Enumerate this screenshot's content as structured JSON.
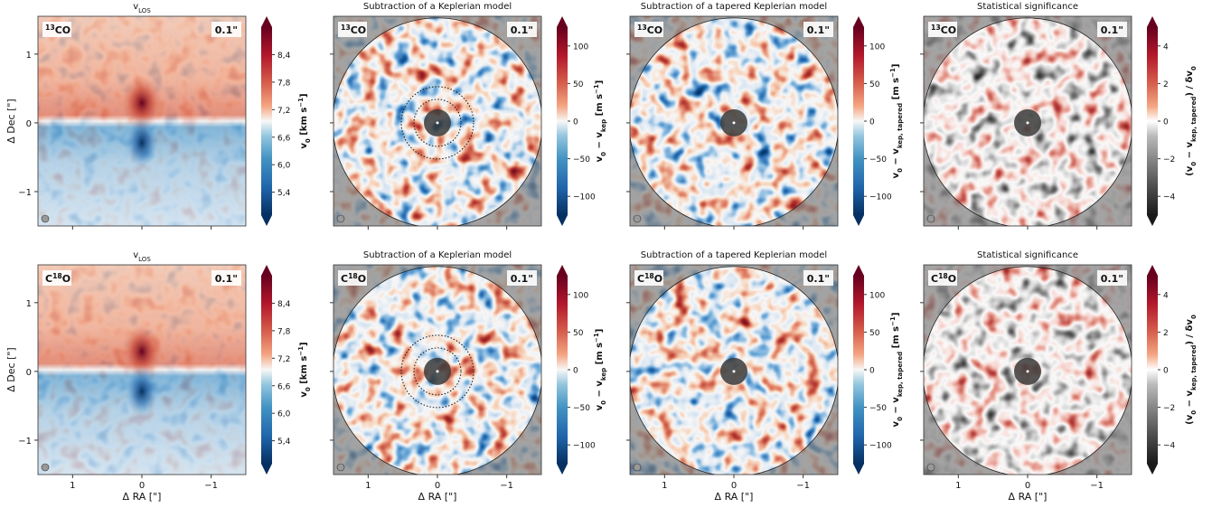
{
  "chart_data": [
    {
      "type": "image",
      "title": [
        {
          "text": "v"
        },
        {
          "text": "LOS",
          "shift": "sub"
        }
      ],
      "molecule": [
        {
          "text": "13",
          "shift": "super"
        },
        {
          "text": "CO"
        }
      ],
      "beam": "0.1\"",
      "ylabel": "Δ Dec [\"]",
      "xlim": [
        1.5,
        -1.5
      ],
      "ylim": [
        -1.5,
        1.55
      ],
      "xticks": [
        1,
        0,
        -1
      ],
      "xticklabels": false,
      "yticks": [
        {
          "value": -1,
          "label": "−1"
        },
        0,
        1
      ],
      "yticklabels": true,
      "cmap": "RdBu",
      "mask": false,
      "rings": false,
      "clim": [
        4.9,
        9.0
      ],
      "cticks": [
        {
          "value": 5.4,
          "label": "5,4"
        },
        {
          "value": 6.0,
          "label": "6,0"
        },
        {
          "value": 6.6,
          "label": "6,6"
        },
        {
          "value": 7.2,
          "label": "7,2"
        },
        {
          "value": 7.8,
          "label": "7,8"
        },
        {
          "value": 8.4,
          "label": "8,4"
        }
      ],
      "cbar_label": [
        {
          "text": "v"
        },
        {
          "text": "0",
          "shift": "sub"
        },
        {
          "text": " [km s"
        },
        {
          "text": "−1",
          "shift": "super"
        },
        {
          "text": "]"
        }
      ]
    },
    {
      "type": "image",
      "title": "Subtraction of a Keplerian model",
      "molecule": [
        {
          "text": "13",
          "shift": "super"
        },
        {
          "text": "CO"
        }
      ],
      "beam": "0.1\"",
      "xlim": [
        1.5,
        -1.5
      ],
      "ylim": [
        -1.5,
        1.55
      ],
      "xticks": [
        1,
        0,
        -1
      ],
      "xticklabels": false,
      "yticks": [
        -1,
        0,
        1
      ],
      "yticklabels": false,
      "cmap": "RdBu",
      "mask": true,
      "rings": true,
      "clim": [
        -125,
        125
      ],
      "cticks": [
        {
          "value": -100,
          "label": "−100"
        },
        {
          "value": -50,
          "label": "−50"
        },
        0,
        50,
        100
      ],
      "cbar_label": [
        {
          "text": "v"
        },
        {
          "text": "0",
          "shift": "sub"
        },
        {
          "text": " − v"
        },
        {
          "text": "kep",
          "shift": "sub"
        },
        {
          "text": " [m s"
        },
        {
          "text": "−1",
          "shift": "super"
        },
        {
          "text": "]"
        }
      ]
    },
    {
      "type": "image",
      "title": "Subtraction of a tapered Keplerian model",
      "molecule": [
        {
          "text": "13",
          "shift": "super"
        },
        {
          "text": "CO"
        }
      ],
      "beam": "0.1\"",
      "xlim": [
        1.5,
        -1.5
      ],
      "ylim": [
        -1.5,
        1.55
      ],
      "xticks": [
        1,
        0,
        -1
      ],
      "xticklabels": false,
      "yticks": [
        -1,
        0,
        1
      ],
      "yticklabels": false,
      "cmap": "RdBu",
      "mask": true,
      "rings": false,
      "clim": [
        -125,
        125
      ],
      "cticks": [
        {
          "value": -100,
          "label": "−100"
        },
        {
          "value": -50,
          "label": "−50"
        },
        0,
        50,
        100
      ],
      "cbar_label": [
        {
          "text": "v"
        },
        {
          "text": "0",
          "shift": "sub"
        },
        {
          "text": " − v"
        },
        {
          "text": "kep, tapered",
          "shift": "sub"
        },
        {
          "text": " [m s"
        },
        {
          "text": "−1",
          "shift": "super"
        },
        {
          "text": "]"
        }
      ]
    },
    {
      "type": "image",
      "title": "Statistical significance",
      "molecule": [
        {
          "text": "13",
          "shift": "super"
        },
        {
          "text": "CO"
        }
      ],
      "beam": "0.1\"",
      "xlim": [
        1.5,
        -1.5
      ],
      "ylim": [
        -1.5,
        1.55
      ],
      "xticks": [
        1,
        0,
        -1
      ],
      "xticklabels": false,
      "yticks": [
        -1,
        0,
        1
      ],
      "yticklabels": false,
      "cmap": "RdGy",
      "mask": true,
      "rings": false,
      "clim": [
        -5,
        5
      ],
      "cticks": [
        {
          "value": -4,
          "label": "−4"
        },
        {
          "value": -2,
          "label": "−2"
        },
        0,
        2,
        4
      ],
      "cbar_label": [
        {
          "text": "(v"
        },
        {
          "text": "0",
          "shift": "sub"
        },
        {
          "text": " − v"
        },
        {
          "text": "kep, tapered",
          "shift": "sub"
        },
        {
          "text": ") / δv"
        },
        {
          "text": "0",
          "shift": "sub"
        }
      ]
    },
    {
      "type": "image",
      "title": [
        {
          "text": "v"
        },
        {
          "text": "LOS",
          "shift": "sub"
        }
      ],
      "molecule": [
        {
          "text": "C"
        },
        {
          "text": "18",
          "shift": "super"
        },
        {
          "text": "O"
        }
      ],
      "beam": "0.1\"",
      "xlabel": "Δ RA [\"]",
      "ylabel": "Δ Dec [\"]",
      "xlim": [
        1.5,
        -1.5
      ],
      "ylim": [
        -1.5,
        1.55
      ],
      "xticks": [
        1,
        0,
        {
          "value": -1,
          "label": "−1"
        }
      ],
      "xticklabels": true,
      "yticks": [
        {
          "value": -1,
          "label": "−1"
        },
        0,
        1
      ],
      "yticklabels": true,
      "cmap": "RdBu",
      "mask": false,
      "rings": false,
      "clim": [
        4.9,
        9.0
      ],
      "cticks": [
        {
          "value": 5.4,
          "label": "5,4"
        },
        {
          "value": 6.0,
          "label": "6,0"
        },
        {
          "value": 6.6,
          "label": "6,6"
        },
        {
          "value": 7.2,
          "label": "7,2"
        },
        {
          "value": 7.8,
          "label": "7,8"
        },
        {
          "value": 8.4,
          "label": "8,4"
        }
      ],
      "cbar_label": [
        {
          "text": "v"
        },
        {
          "text": "0",
          "shift": "sub"
        },
        {
          "text": " [km s"
        },
        {
          "text": "−1",
          "shift": "super"
        },
        {
          "text": "]"
        }
      ]
    },
    {
      "type": "image",
      "title": "Subtraction of a Keplerian model",
      "molecule": [
        {
          "text": "C"
        },
        {
          "text": "18",
          "shift": "super"
        },
        {
          "text": "O"
        }
      ],
      "beam": "0.1\"",
      "xlabel": "Δ RA [\"]",
      "xlim": [
        1.5,
        -1.5
      ],
      "ylim": [
        -1.5,
        1.55
      ],
      "xticks": [
        1,
        0,
        {
          "value": -1,
          "label": "−1"
        }
      ],
      "xticklabels": true,
      "yticks": [
        -1,
        0,
        1
      ],
      "yticklabels": false,
      "cmap": "RdBu",
      "mask": true,
      "rings": true,
      "clim": [
        -125,
        125
      ],
      "cticks": [
        {
          "value": -100,
          "label": "−100"
        },
        {
          "value": -50,
          "label": "−50"
        },
        0,
        50,
        100
      ],
      "cbar_label": [
        {
          "text": "v"
        },
        {
          "text": "0",
          "shift": "sub"
        },
        {
          "text": " − v"
        },
        {
          "text": "kep",
          "shift": "sub"
        },
        {
          "text": " [m s"
        },
        {
          "text": "−1",
          "shift": "super"
        },
        {
          "text": "]"
        }
      ]
    },
    {
      "type": "image",
      "title": "Subtraction of a tapered Keplerian model",
      "molecule": [
        {
          "text": "C"
        },
        {
          "text": "18",
          "shift": "super"
        },
        {
          "text": "O"
        }
      ],
      "beam": "0.1\"",
      "xlabel": "Δ RA [\"]",
      "xlim": [
        1.5,
        -1.5
      ],
      "ylim": [
        -1.5,
        1.55
      ],
      "xticks": [
        1,
        0,
        {
          "value": -1,
          "label": "−1"
        }
      ],
      "xticklabels": true,
      "yticks": [
        -1,
        0,
        1
      ],
      "yticklabels": false,
      "cmap": "RdBu",
      "mask": true,
      "rings": false,
      "clim": [
        -125,
        125
      ],
      "cticks": [
        {
          "value": -100,
          "label": "−100"
        },
        {
          "value": -50,
          "label": "−50"
        },
        0,
        50,
        100
      ],
      "cbar_label": [
        {
          "text": "v"
        },
        {
          "text": "0",
          "shift": "sub"
        },
        {
          "text": " − v"
        },
        {
          "text": "kep, tapered",
          "shift": "sub"
        },
        {
          "text": " [m s"
        },
        {
          "text": "−1",
          "shift": "super"
        },
        {
          "text": "]"
        }
      ]
    },
    {
      "type": "image",
      "title": "Statistical significance",
      "molecule": [
        {
          "text": "C"
        },
        {
          "text": "18",
          "shift": "super"
        },
        {
          "text": "O"
        }
      ],
      "beam": "0.1\"",
      "xlabel": "Δ RA [\"]",
      "xlim": [
        1.5,
        -1.5
      ],
      "ylim": [
        -1.5,
        1.55
      ],
      "xticks": [
        1,
        0,
        {
          "value": -1,
          "label": "−1"
        }
      ],
      "xticklabels": true,
      "yticks": [
        -1,
        0,
        1
      ],
      "yticklabels": false,
      "cmap": "RdGy",
      "mask": true,
      "rings": false,
      "clim": [
        -5,
        5
      ],
      "cticks": [
        {
          "value": -4,
          "label": "−4"
        },
        {
          "value": -2,
          "label": "−2"
        },
        0,
        2,
        4
      ],
      "cbar_label": [
        {
          "text": "(v"
        },
        {
          "text": "0",
          "shift": "sub"
        },
        {
          "text": " − v"
        },
        {
          "text": "kep, tapered",
          "shift": "sub"
        },
        {
          "text": ") / δv"
        },
        {
          "text": "0",
          "shift": "sub"
        }
      ]
    }
  ]
}
